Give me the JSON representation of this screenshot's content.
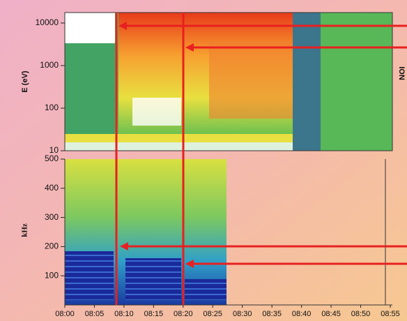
{
  "chart_data": [
    {
      "type": "spectrogram",
      "ylabel": "E (eV)",
      "side_label": "ION",
      "log_scale": true,
      "ylim": [
        10,
        17600
      ],
      "yticks": [
        10,
        100,
        1000,
        10000
      ]
    },
    {
      "type": "spectrogram",
      "ylabel": "kHz",
      "ylim": [
        0,
        500
      ],
      "yticks": [
        100,
        200,
        300,
        400,
        500
      ],
      "xlim": [
        "08:00",
        "08:55"
      ],
      "xticks": [
        "08:00",
        "08:05",
        "08:10",
        "08:15",
        "08:20",
        "08:25",
        "08:30",
        "08:35",
        "08:40",
        "08:45",
        "08:50",
        "08:55"
      ]
    }
  ]
}
